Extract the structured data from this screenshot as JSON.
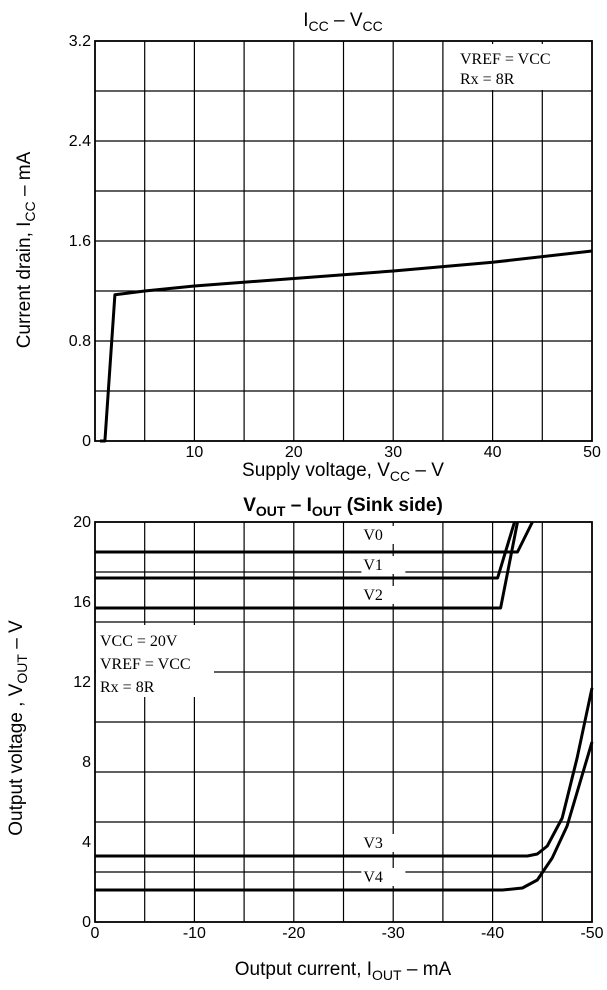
{
  "chart_data": [
    {
      "type": "line",
      "title": "I",
      "title_sub1": "CC",
      "title_mid": " – V",
      "title_sub2": "CC",
      "xlabel": "Supply voltage, V",
      "xlabel_sub": "CC",
      "xlabel_tail": " – V",
      "ylabel": "Current drain, I",
      "ylabel_sub": "CC",
      "ylabel_tail": " – mA",
      "xlim": [
        0,
        50
      ],
      "ylim": [
        0,
        3.2
      ],
      "x_ticks": [
        {
          "v": 0,
          "label": ""
        },
        {
          "v": 10,
          "label": "10"
        },
        {
          "v": 20,
          "label": "20"
        },
        {
          "v": 30,
          "label": "30"
        },
        {
          "v": 40,
          "label": "40"
        },
        {
          "v": 50,
          "label": "50"
        }
      ],
      "y_ticks": [
        {
          "v": 0,
          "label": "0"
        },
        {
          "v": 0.8,
          "label": "0.8"
        },
        {
          "v": 1.6,
          "label": "1.6"
        },
        {
          "v": 2.4,
          "label": "2.4"
        },
        {
          "v": 3.2,
          "label": "3.2"
        }
      ],
      "grid": true,
      "annotations": [
        {
          "name": "vref-note",
          "text": "VREF = VCC"
        },
        {
          "name": "rx-note",
          "text": "Rx = 8R"
        }
      ],
      "series": [
        {
          "x": [
            0.5,
            1.0,
            2.0,
            5,
            10,
            20,
            30,
            40,
            50
          ],
          "y": [
            0.0,
            0.0,
            1.17,
            1.2,
            1.24,
            1.3,
            1.36,
            1.43,
            1.52
          ]
        }
      ]
    },
    {
      "type": "line",
      "title": "V",
      "title_sub1": "OUT",
      "title_mid": " – I",
      "title_sub2": "OUT",
      "title_tail": " (Sink side)",
      "xlabel": "Output current, I",
      "xlabel_sub": "OUT",
      "xlabel_tail": " – mA",
      "ylabel": "Output voltage , V",
      "ylabel_sub": "OUT",
      "ylabel_tail": " – V",
      "xlim": [
        0,
        -50
      ],
      "ylim": [
        0,
        20
      ],
      "x_ticks": [
        {
          "v": 0,
          "label": "0"
        },
        {
          "v": -10,
          "label": "-10"
        },
        {
          "v": -20,
          "label": "-20"
        },
        {
          "v": -30,
          "label": "-30"
        },
        {
          "v": -40,
          "label": "-40"
        },
        {
          "v": -50,
          "label": "-50"
        }
      ],
      "y_ticks": [
        {
          "v": 0,
          "label": "0"
        },
        {
          "v": 4,
          "label": "4"
        },
        {
          "v": 8,
          "label": "8"
        },
        {
          "v": 12,
          "label": "12"
        },
        {
          "v": 16,
          "label": "16"
        },
        {
          "v": 20,
          "label": "20"
        }
      ],
      "grid": true,
      "annotations": [
        {
          "name": "vcc-note",
          "text": "VCC = 20V"
        },
        {
          "name": "vref-note",
          "text": "VREF = VCC"
        },
        {
          "name": "rx-note",
          "text": "Rx = 8R"
        }
      ],
      "series": [
        {
          "name": "V0",
          "x": [
            0,
            -42.5,
            -44
          ],
          "y": [
            18.5,
            18.5,
            20
          ]
        },
        {
          "name": "V1",
          "x": [
            0,
            -40.5,
            -42.2
          ],
          "y": [
            17.2,
            17.2,
            20
          ]
        },
        {
          "name": "V2",
          "x": [
            0,
            -40.8,
            -42.5
          ],
          "y": [
            15.7,
            15.7,
            20
          ]
        },
        {
          "name": "V3",
          "x": [
            0,
            -43.5,
            -44.5,
            -45.5,
            -47,
            -48.5,
            -50
          ],
          "y": [
            3.3,
            3.3,
            3.4,
            3.8,
            5.2,
            8.2,
            11.7
          ]
        },
        {
          "name": "V4",
          "x": [
            0,
            -41,
            -43,
            -44.5,
            -46,
            -47.5,
            -50
          ],
          "y": [
            1.6,
            1.6,
            1.7,
            2.1,
            3.2,
            4.8,
            9.0
          ]
        }
      ]
    }
  ]
}
